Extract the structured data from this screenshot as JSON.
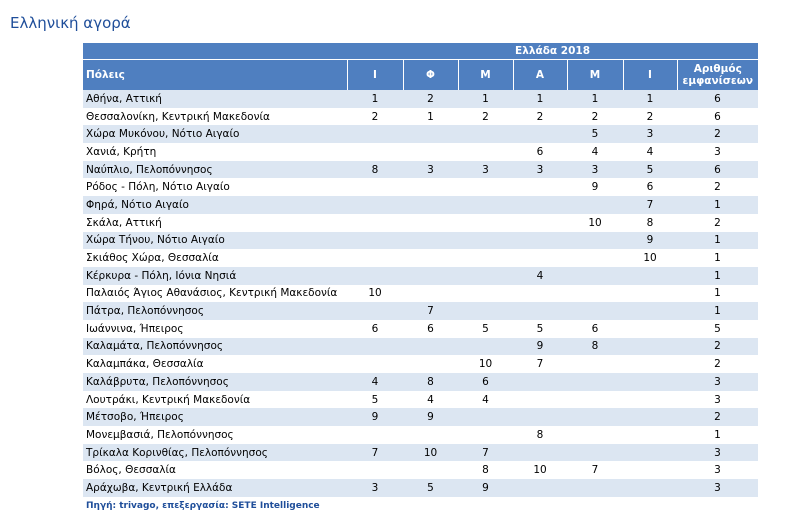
{
  "title": "Ελληνική αγορά",
  "table": {
    "caption": "Ελλάδα 2018",
    "columns": [
      "Πόλεις",
      "Ι",
      "Φ",
      "Μ",
      "Α",
      "Μ",
      "Ι",
      "Αριθμός εμφανίσεων"
    ],
    "rows": [
      [
        "Αθήνα, Αττική",
        1,
        2,
        1,
        1,
        1,
        1,
        6
      ],
      [
        "Θεσσαλονίκη, Κεντρική Μακεδονία",
        2,
        1,
        2,
        2,
        2,
        2,
        6
      ],
      [
        "Χώρα Μυκόνου, Νότιο Αιγαίο",
        null,
        null,
        null,
        null,
        5,
        3,
        2
      ],
      [
        "Χανιά, Κρήτη",
        null,
        null,
        null,
        6,
        4,
        4,
        3
      ],
      [
        "Ναύπλιο, Πελοπόννησος",
        8,
        3,
        3,
        3,
        3,
        5,
        6
      ],
      [
        "Ρόδος - Πόλη, Νότιο Αιγαίο",
        null,
        null,
        null,
        null,
        9,
        6,
        2
      ],
      [
        "Φηρά, Νότιο Αιγαίο",
        null,
        null,
        null,
        null,
        null,
        7,
        1
      ],
      [
        "Σκάλα, Αττική",
        null,
        null,
        null,
        null,
        10,
        8,
        2
      ],
      [
        "Χώρα Τήνου, Νότιο Αιγαίο",
        null,
        null,
        null,
        null,
        null,
        9,
        1
      ],
      [
        "Σκιάθος Χώρα, Θεσσαλία",
        null,
        null,
        null,
        null,
        null,
        10,
        1
      ],
      [
        "Κέρκυρα - Πόλη, Ιόνια Νησιά",
        null,
        null,
        null,
        4,
        null,
        null,
        1
      ],
      [
        "Παλαιός Άγιος Αθανάσιος, Κεντρική Μακεδονία",
        10,
        null,
        null,
        null,
        null,
        null,
        1
      ],
      [
        "Πάτρα, Πελοπόννησος",
        null,
        7,
        null,
        null,
        null,
        null,
        1
      ],
      [
        "Ιωάννινα, Ήπειρος",
        6,
        6,
        5,
        5,
        6,
        null,
        5
      ],
      [
        "Καλαμάτα, Πελοπόννησος",
        null,
        null,
        null,
        9,
        8,
        null,
        2
      ],
      [
        "Καλαμπάκα, Θεσσαλία",
        null,
        null,
        10,
        7,
        null,
        null,
        2
      ],
      [
        "Καλάβρυτα, Πελοπόννησος",
        4,
        8,
        6,
        null,
        null,
        null,
        3
      ],
      [
        "Λουτράκι, Κεντρική Μακεδονία",
        5,
        4,
        4,
        null,
        null,
        null,
        3
      ],
      [
        "Μέτσοβο, Ήπειρος",
        9,
        9,
        null,
        null,
        null,
        null,
        2
      ],
      [
        "Μονεμβασιά, Πελοπόννησος",
        null,
        null,
        null,
        8,
        null,
        null,
        1
      ],
      [
        "Τρίκαλα Κορινθίας, Πελοπόννησος",
        7,
        10,
        7,
        null,
        null,
        null,
        3
      ],
      [
        "Βόλος, Θεσσαλία",
        null,
        null,
        8,
        10,
        7,
        null,
        3
      ],
      [
        "Αράχωβα, Κεντρική Ελλάδα",
        3,
        5,
        9,
        null,
        null,
        null,
        3
      ]
    ]
  },
  "source": "Πηγή: trivago, επεξεργασία: SETE Intelligence"
}
